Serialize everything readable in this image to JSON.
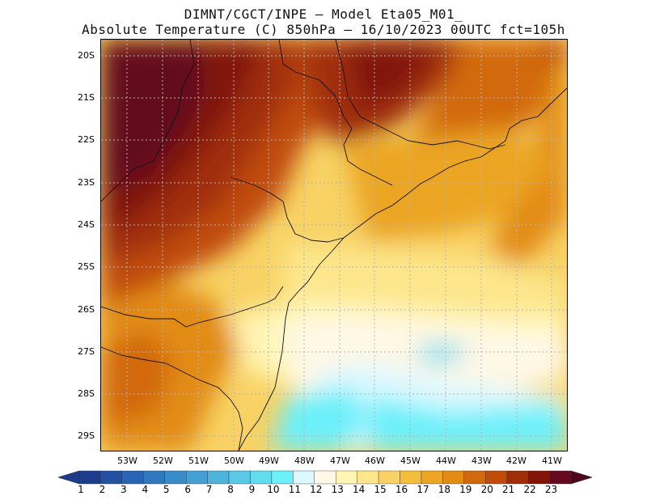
{
  "title": {
    "line1": "DIMNT/CGCT/INPE –  Model Eta05_M01_",
    "line2": "Absolute Temperature (C) 850hPa –  16/10/2023 00UTC fct=105h"
  },
  "map": {
    "lat_labels": [
      "20S",
      "21S",
      "22S",
      "23S",
      "24S",
      "25S",
      "26S",
      "27S",
      "28S",
      "29S"
    ],
    "lon_labels": [
      "53W",
      "52W",
      "51W",
      "50W",
      "49W",
      "48W",
      "47W",
      "46W",
      "45W",
      "44W",
      "43W",
      "42W",
      "41W"
    ],
    "lat_range": [
      -29.4,
      -19.8
    ],
    "lon_range": [
      -53.8,
      -40.6
    ]
  },
  "colorbar": {
    "labels": [
      "1",
      "2",
      "3",
      "4",
      "5",
      "6",
      "7",
      "8",
      "9",
      "10",
      "11",
      "12",
      "13",
      "14",
      "15",
      "16",
      "17",
      "18",
      "19",
      "20",
      "21",
      "22",
      "23"
    ],
    "colors": [
      "#1e3c8c",
      "#2450a0",
      "#2a64b4",
      "#3278be",
      "#3a8cc8",
      "#44a0d2",
      "#4eb4dc",
      "#5ac8e6",
      "#64dcf0",
      "#6cf0fa",
      "#dcf8ff",
      "#fff8e6",
      "#fff5b4",
      "#fde68c",
      "#f8d264",
      "#f3be3c",
      "#eba522",
      "#e28c14",
      "#d2690f",
      "#c04b0a",
      "#a02d08",
      "#821408",
      "#640a1e"
    ],
    "left_arrow_color": "#1e3c8c",
    "right_arrow_color": "#50051e"
  }
}
